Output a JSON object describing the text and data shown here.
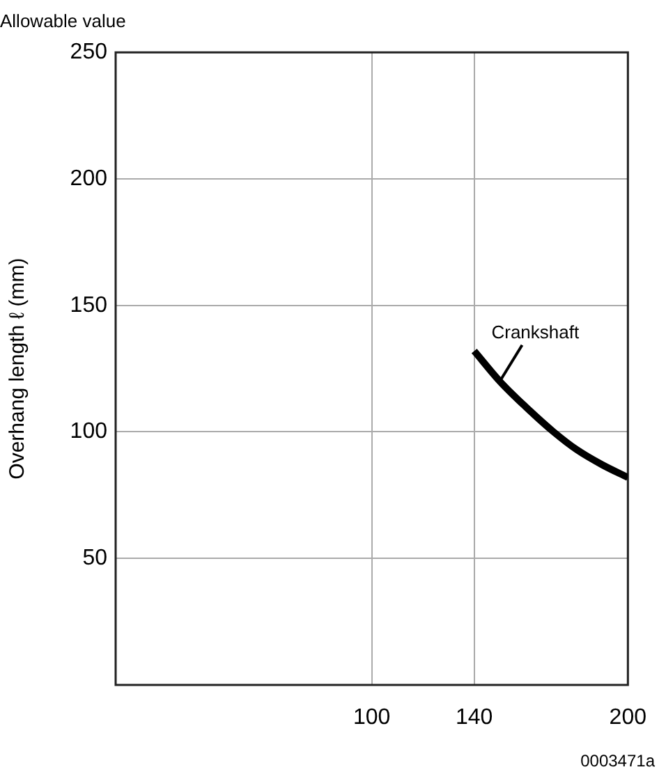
{
  "chart_data": {
    "type": "line",
    "title": "Allowable value",
    "ylabel": "Overhang length ℓ (mm)",
    "x": [
      140,
      150,
      160,
      171,
      180,
      190,
      200
    ],
    "series": [
      {
        "name": "Crankshaft",
        "color": "#000000",
        "values": [
          132,
          120,
          110,
          100,
          93,
          87,
          82
        ]
      }
    ],
    "xlim": [
      0,
      200
    ],
    "xticks": [
      100,
      140,
      200
    ],
    "ylim": [
      0,
      250
    ],
    "yticks": [
      50,
      100,
      150,
      200,
      250
    ],
    "grid": true,
    "legend": false,
    "marker": "none",
    "line_style": "solid",
    "annotations": [
      "0003471a"
    ]
  }
}
